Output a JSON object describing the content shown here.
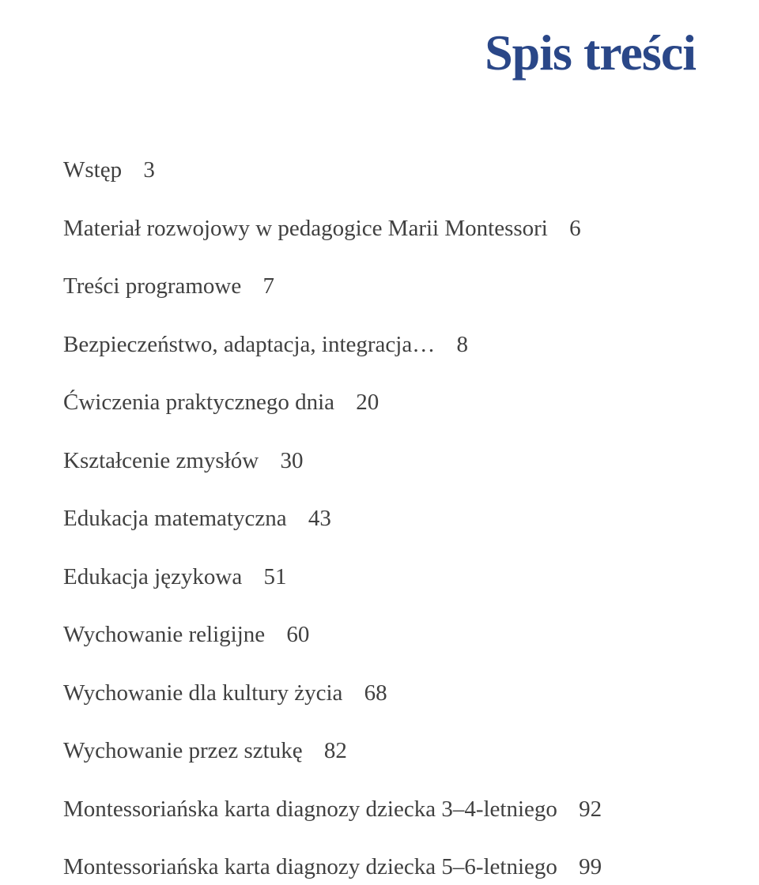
{
  "title": "Spis treści",
  "colors": {
    "title_color": "#2a4788",
    "text_color": "#404040",
    "background_color": "#ffffff"
  },
  "typography": {
    "title_fontsize": 64,
    "title_weight": "bold",
    "entry_fontsize": 29,
    "font_family": "Georgia, Times New Roman, serif"
  },
  "entries": [
    {
      "label": "Wstęp",
      "page": "3"
    },
    {
      "label": "Materiał rozwojowy w pedagogice Marii Montessori",
      "page": "6"
    },
    {
      "label": "Treści programowe",
      "page": "7"
    },
    {
      "label": "Bezpieczeństwo, adaptacja, integracja…",
      "page": "8"
    },
    {
      "label": "Ćwiczenia praktycznego dnia",
      "page": "20"
    },
    {
      "label": "Kształcenie zmysłów",
      "page": "30"
    },
    {
      "label": "Edukacja matematyczna",
      "page": "43"
    },
    {
      "label": "Edukacja językowa",
      "page": "51"
    },
    {
      "label": "Wychowanie religijne",
      "page": "60"
    },
    {
      "label": "Wychowanie dla kultury życia",
      "page": "68"
    },
    {
      "label": "Wychowanie przez sztukę",
      "page": "82"
    },
    {
      "label": "Montessoriańska karta diagnozy dziecka 3–4-letniego",
      "page": "92"
    },
    {
      "label": "Montessoriańska karta diagnozy dziecka 5–6-letniego",
      "page": "99"
    }
  ]
}
